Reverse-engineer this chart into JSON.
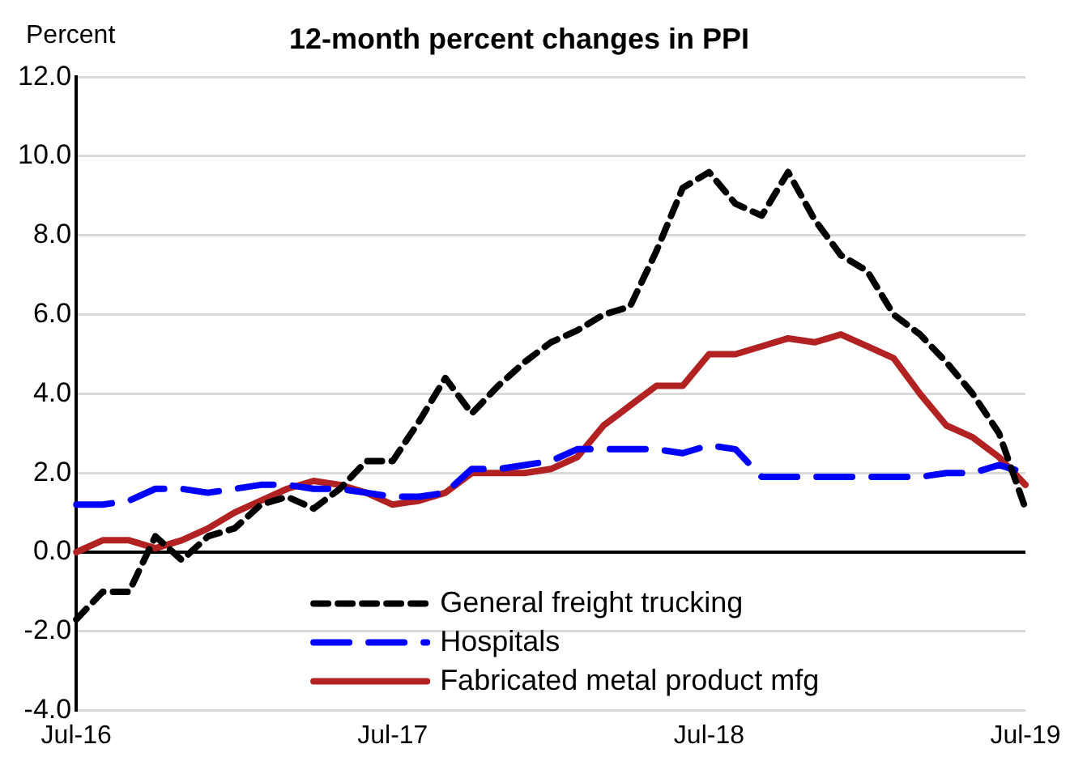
{
  "chart_data": {
    "type": "line",
    "title": "12-month percent changes in PPI",
    "ylabel": "Percent",
    "categories": [
      "Jul-16",
      null,
      null,
      null,
      null,
      null,
      null,
      null,
      null,
      null,
      null,
      null,
      "Jul-17",
      null,
      null,
      null,
      null,
      null,
      null,
      null,
      null,
      null,
      null,
      null,
      "Jul-18",
      null,
      null,
      null,
      null,
      null,
      null,
      null,
      null,
      null,
      null,
      null,
      "Jul-19"
    ],
    "series": [
      {
        "name": "General freight trucking",
        "color": "#000000",
        "line_style": "dashed",
        "values": [
          -1.7,
          -1.0,
          -1.0,
          0.4,
          -0.2,
          0.4,
          0.6,
          1.2,
          1.4,
          1.1,
          1.6,
          2.3,
          2.3,
          3.3,
          4.4,
          3.5,
          4.2,
          4.8,
          5.3,
          5.6,
          6.0,
          6.2,
          7.6,
          9.2,
          9.6,
          8.8,
          8.5,
          9.6,
          8.4,
          7.5,
          7.1,
          6.0,
          5.5,
          4.8,
          4.0,
          3.0,
          1.1
        ]
      },
      {
        "name": "Hospitals",
        "color": "#0000ff",
        "line_style": "dashed",
        "values": [
          1.2,
          1.2,
          1.3,
          1.6,
          1.6,
          1.5,
          1.6,
          1.7,
          1.7,
          1.6,
          1.6,
          1.5,
          1.4,
          1.4,
          1.5,
          2.1,
          2.1,
          2.2,
          2.3,
          2.6,
          2.6,
          2.6,
          2.6,
          2.5,
          2.7,
          2.6,
          1.9,
          1.9,
          1.9,
          1.9,
          1.9,
          1.9,
          1.9,
          2.0,
          2.0,
          2.2,
          2.0
        ]
      },
      {
        "name": "Fabricated metal product mfg",
        "color": "#b22222",
        "line_style": "solid",
        "values": [
          0.0,
          0.3,
          0.3,
          0.1,
          0.3,
          0.6,
          1.0,
          1.3,
          1.6,
          1.8,
          1.7,
          1.5,
          1.2,
          1.3,
          1.5,
          2.0,
          2.0,
          2.0,
          2.1,
          2.4,
          3.2,
          3.7,
          4.2,
          4.2,
          5.0,
          5.0,
          5.2,
          5.4,
          5.3,
          5.5,
          5.2,
          4.9,
          4.0,
          3.2,
          2.9,
          2.4,
          1.7
        ]
      }
    ],
    "ylim": [
      -4,
      12
    ],
    "yticks": [
      {
        "value": -4,
        "label": "-4.0"
      },
      {
        "value": -2,
        "label": "-2.0"
      },
      {
        "value": 0,
        "label": "0.0"
      },
      {
        "value": 2,
        "label": "2.0"
      },
      {
        "value": 4,
        "label": "4.0"
      },
      {
        "value": 6,
        "label": "6.0"
      },
      {
        "value": 8,
        "label": "8.0"
      },
      {
        "value": 10,
        "label": "10.0"
      },
      {
        "value": 12,
        "label": "12.0"
      }
    ],
    "grid": "y",
    "legend": "bottom",
    "marker": "none"
  }
}
